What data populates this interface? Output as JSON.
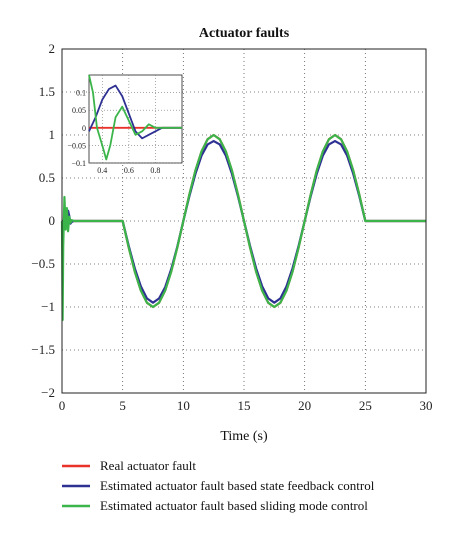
{
  "chart_data": {
    "type": "line",
    "title": "Actuator faults",
    "xlabel": "Time (s)",
    "ylabel": "",
    "xlim": [
      0,
      30
    ],
    "ylim": [
      -2,
      2
    ],
    "xticks": [
      "0",
      "5",
      "10",
      "15",
      "20",
      "25",
      "30"
    ],
    "yticks": [
      "−2",
      "−1.5",
      "−1",
      "−0.5",
      "0",
      "0.5",
      "1",
      "1.5",
      "2"
    ],
    "grid": "dotted",
    "legend_placement": "below plot",
    "series": [
      {
        "name": "Real actuator fault",
        "color": "#e8322a",
        "x": [
          0,
          5,
          5.5,
          6,
          6.5,
          7,
          7.5,
          8,
          8.5,
          9,
          9.5,
          10,
          10.5,
          11,
          11.5,
          12,
          12.5,
          13,
          13.5,
          14,
          14.5,
          15,
          15.5,
          16,
          16.5,
          17,
          17.5,
          18,
          18.5,
          19,
          19.5,
          20,
          20.5,
          21,
          21.5,
          22,
          22.5,
          23,
          23.5,
          24,
          24.5,
          25,
          30
        ],
        "y": [
          0,
          0,
          -0.309,
          -0.588,
          -0.809,
          -0.951,
          -1,
          -0.951,
          -0.809,
          -0.588,
          -0.309,
          0,
          0.309,
          0.588,
          0.809,
          0.951,
          1,
          0.951,
          0.809,
          0.588,
          0.309,
          0,
          -0.309,
          -0.588,
          -0.809,
          -0.951,
          -1,
          -0.951,
          -0.809,
          -0.588,
          -0.309,
          0,
          0.309,
          0.588,
          0.809,
          0.951,
          1,
          0.951,
          0.809,
          0.588,
          0.309,
          0,
          0
        ]
      },
      {
        "name": "Estimated actuator fault based state feedback control",
        "color": "#2e3192",
        "x": [
          0,
          0.3,
          0.4,
          0.5,
          0.6,
          0.7,
          0.8,
          1,
          5,
          5.5,
          6,
          6.5,
          7,
          7.5,
          8,
          8.5,
          9,
          9.5,
          10,
          10.5,
          11,
          11.5,
          12,
          12.5,
          13,
          13.5,
          14,
          14.5,
          15,
          15.5,
          16,
          16.5,
          17,
          17.5,
          18,
          18.5,
          19,
          19.5,
          20,
          20.5,
          21,
          21.5,
          22,
          22.5,
          23,
          23.5,
          24,
          24.5,
          25,
          30
        ],
        "y": [
          0,
          0,
          0.05,
          0.12,
          0.06,
          -0.03,
          -0.01,
          0,
          0,
          -0.29,
          -0.55,
          -0.76,
          -0.9,
          -0.95,
          -0.9,
          -0.77,
          -0.56,
          -0.3,
          0,
          0.29,
          0.55,
          0.76,
          0.89,
          0.93,
          0.89,
          0.76,
          0.55,
          0.29,
          0,
          -0.29,
          -0.55,
          -0.76,
          -0.9,
          -0.95,
          -0.9,
          -0.76,
          -0.55,
          -0.29,
          0,
          0.29,
          0.55,
          0.76,
          0.89,
          0.93,
          0.89,
          0.76,
          0.55,
          0.29,
          0,
          0
        ]
      },
      {
        "name": "Estimated actuator fault based sliding mode control",
        "color": "#3bb54a",
        "x": [
          0,
          0.05,
          0.1,
          0.2,
          0.3,
          0.4,
          0.5,
          0.6,
          0.7,
          0.8,
          1,
          5,
          5.5,
          6,
          6.5,
          7,
          7.5,
          8,
          8.5,
          9,
          9.5,
          10,
          10.5,
          11,
          11.5,
          12,
          12.5,
          13,
          13.5,
          14,
          14.5,
          15,
          15.5,
          16,
          16.5,
          17,
          17.5,
          18,
          18.5,
          19,
          19.5,
          20,
          20.5,
          21,
          21.5,
          22,
          22.5,
          23,
          23.5,
          24,
          24.5,
          25,
          30
        ],
        "y": [
          0,
          -1.15,
          -0.3,
          0.28,
          -0.1,
          0.15,
          -0.12,
          0.05,
          -0.02,
          0.01,
          0,
          0,
          -0.31,
          -0.59,
          -0.81,
          -0.95,
          -1,
          -0.95,
          -0.81,
          -0.59,
          -0.31,
          0,
          0.31,
          0.59,
          0.81,
          0.95,
          1,
          0.95,
          0.81,
          0.59,
          0.31,
          0,
          -0.31,
          -0.59,
          -0.81,
          -0.95,
          -1,
          -0.95,
          -0.81,
          -0.59,
          -0.31,
          0,
          0.31,
          0.59,
          0.81,
          0.95,
          1,
          0.95,
          0.81,
          0.59,
          0.31,
          0,
          0
        ]
      }
    ],
    "inset": {
      "xlim": [
        0.3,
        1.0
      ],
      "ylim": [
        -0.1,
        0.15
      ],
      "xticks": [
        "0.4",
        "0.6",
        "0.8"
      ],
      "yticks": [
        "−0.1",
        "−0.05",
        "0",
        "0.05",
        "0.1"
      ],
      "series": [
        {
          "color": "#e8322a",
          "x": [
            0.3,
            1.0
          ],
          "y": [
            0,
            0
          ]
        },
        {
          "color": "#2e3192",
          "x": [
            0.3,
            0.35,
            0.4,
            0.45,
            0.5,
            0.55,
            0.6,
            0.65,
            0.7,
            0.75,
            0.8,
            0.85,
            0.9,
            1.0
          ],
          "y": [
            -0.01,
            0.03,
            0.08,
            0.11,
            0.12,
            0.09,
            0.04,
            -0.01,
            -0.03,
            -0.02,
            -0.01,
            0,
            0,
            0
          ]
        },
        {
          "color": "#3bb54a",
          "x": [
            0.3,
            0.33,
            0.36,
            0.4,
            0.43,
            0.46,
            0.5,
            0.55,
            0.6,
            0.65,
            0.7,
            0.75,
            0.8,
            0.9,
            1.0
          ],
          "y": [
            0.15,
            0.1,
            0.0,
            -0.05,
            -0.09,
            -0.05,
            0.03,
            0.06,
            0.02,
            -0.02,
            -0.01,
            0.01,
            0,
            0,
            0
          ]
        }
      ]
    }
  }
}
